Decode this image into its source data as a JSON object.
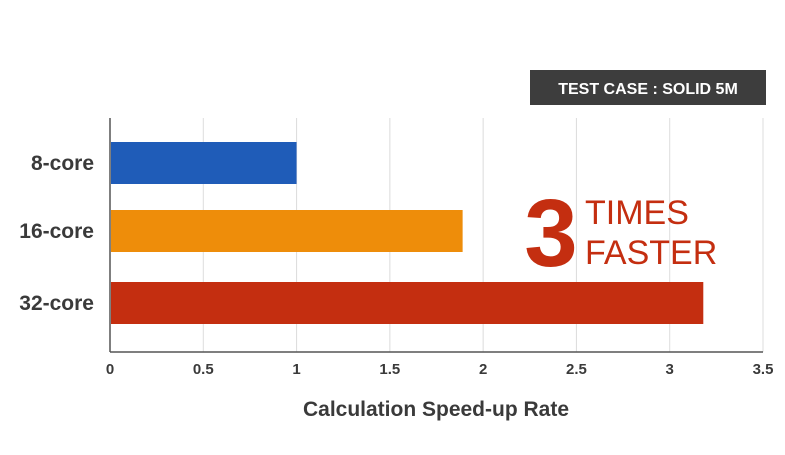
{
  "chart_data": {
    "type": "bar",
    "orientation": "horizontal",
    "categories": [
      "8-core",
      "16-core",
      "32-core"
    ],
    "values": [
      1.0,
      1.89,
      3.18
    ],
    "colors": [
      "#1f5cb8",
      "#ee8d0a",
      "#c42e10"
    ],
    "xlabel": "Calculation Speed-up Rate",
    "ylabel": "",
    "xlim": [
      0,
      3.5
    ],
    "x_ticks": [
      0,
      0.5,
      1,
      1.5,
      2,
      2.5,
      3,
      3.5
    ],
    "x_tick_labels": [
      "0",
      "0.5",
      "1",
      "1.5",
      "2",
      "2.5",
      "3",
      "3.5"
    ],
    "grid": true,
    "badge": "TEST CASE : SOLID 5M",
    "annotation": {
      "number": "3",
      "line1": "TIMES",
      "line2": "FASTER",
      "color": "#c42e10"
    }
  },
  "colors": {
    "badge_bg": "#3d3d3d",
    "badge_text": "#ffffff",
    "axis": "#555555",
    "grid": "#dcdcdc",
    "label_text": "#3a3a3a"
  }
}
